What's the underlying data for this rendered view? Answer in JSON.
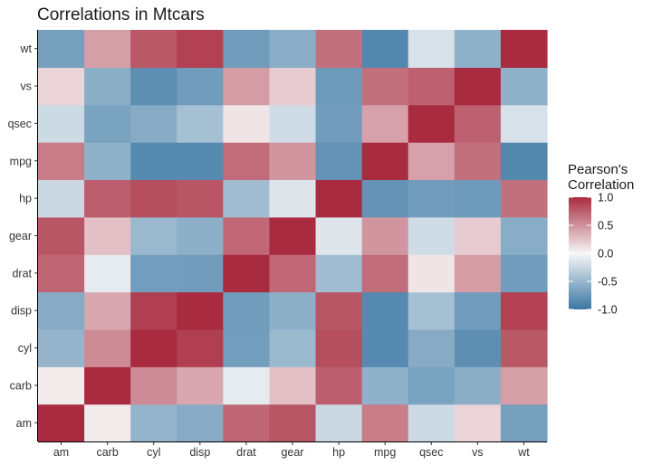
{
  "chart_data": {
    "type": "heatmap",
    "title": "Correlations in Mtcars",
    "xlabel": "",
    "ylabel": "",
    "x_categories": [
      "am",
      "carb",
      "cyl",
      "disp",
      "drat",
      "gear",
      "hp",
      "mpg",
      "qsec",
      "vs",
      "wt"
    ],
    "y_categories": [
      "am",
      "carb",
      "cyl",
      "disp",
      "drat",
      "gear",
      "hp",
      "mpg",
      "qsec",
      "vs",
      "wt"
    ],
    "values": [
      [
        1.0,
        0.06,
        -0.52,
        -0.59,
        0.71,
        0.79,
        -0.24,
        0.6,
        -0.23,
        0.17,
        -0.69
      ],
      [
        0.06,
        1.0,
        0.53,
        0.39,
        -0.09,
        0.27,
        0.75,
        -0.55,
        -0.66,
        -0.57,
        0.43
      ],
      [
        -0.52,
        0.53,
        1.0,
        0.9,
        -0.7,
        -0.49,
        0.83,
        -0.85,
        -0.59,
        -0.81,
        0.78
      ],
      [
        -0.59,
        0.39,
        0.9,
        1.0,
        -0.71,
        -0.56,
        0.79,
        -0.85,
        -0.43,
        -0.71,
        0.89
      ],
      [
        0.71,
        -0.09,
        -0.7,
        -0.71,
        1.0,
        0.7,
        -0.45,
        0.68,
        0.09,
        0.44,
        -0.71
      ],
      [
        0.79,
        0.27,
        -0.49,
        -0.56,
        0.7,
        1.0,
        -0.13,
        0.48,
        -0.21,
        0.21,
        -0.58
      ],
      [
        -0.24,
        0.75,
        0.83,
        0.79,
        -0.45,
        -0.13,
        1.0,
        -0.78,
        -0.71,
        -0.72,
        0.66
      ],
      [
        0.6,
        -0.55,
        -0.85,
        -0.85,
        0.68,
        0.48,
        -0.78,
        1.0,
        0.42,
        0.66,
        -0.87
      ],
      [
        -0.23,
        -0.66,
        -0.59,
        -0.43,
        0.09,
        -0.21,
        -0.71,
        0.42,
        1.0,
        0.74,
        -0.17
      ],
      [
        0.17,
        -0.57,
        -0.81,
        -0.71,
        0.44,
        0.21,
        -0.72,
        0.66,
        0.74,
        1.0,
        -0.55
      ],
      [
        -0.69,
        0.43,
        0.78,
        0.89,
        -0.71,
        -0.58,
        0.66,
        -0.87,
        -0.17,
        -0.55,
        1.0
      ]
    ],
    "zlim": [
      -1,
      1
    ],
    "color_scale": {
      "low": "#3a77a3",
      "mid": "#f7f7f7",
      "high": "#a82b3f"
    },
    "legend": {
      "title_lines": [
        "Pearson's",
        "Correlation"
      ],
      "ticks": [
        1.0,
        0.5,
        0.0,
        -0.5,
        -1.0
      ],
      "tick_labels": [
        "1.0",
        "0.5",
        "0.0",
        "-0.5",
        "-1.0"
      ],
      "position": "right"
    },
    "grid": false
  }
}
